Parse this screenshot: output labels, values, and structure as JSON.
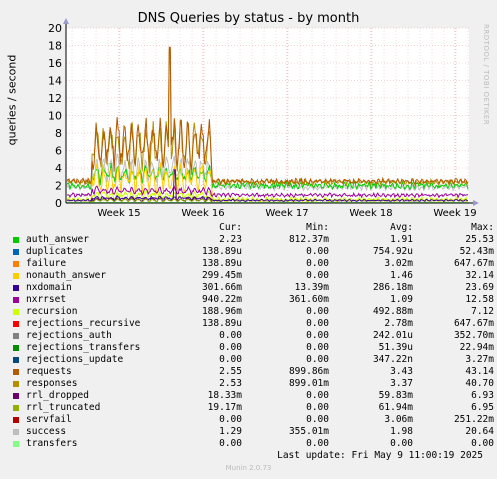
{
  "chart_data": {
    "type": "line",
    "title": "DNS Queries by status - by month",
    "ylabel": "queries / second",
    "ylim": [
      0,
      20
    ],
    "yticks": [
      0,
      2,
      4,
      6,
      8,
      10,
      12,
      14,
      16,
      18,
      20
    ],
    "xticks": [
      "Week 15",
      "Week 16",
      "Week 17",
      "Week 18",
      "Week 19"
    ],
    "grid": true,
    "side_credit": "RRDTOOL / TOBI OETIKER",
    "columns": [
      "Cur:",
      "Min:",
      "Avg:",
      "Max:"
    ],
    "series": [
      {
        "name": "auth_answer",
        "color": "#00cc00",
        "cur": "2.23",
        "min": "812.37m",
        "avg": "1.91",
        "max": "25.53"
      },
      {
        "name": "duplicates",
        "color": "#0066b3",
        "cur": "138.89u",
        "min": "0.00",
        "avg": "754.92u",
        "max": "52.43m"
      },
      {
        "name": "failure",
        "color": "#ff8000",
        "cur": "138.89u",
        "min": "0.00",
        "avg": "3.02m",
        "max": "647.67m"
      },
      {
        "name": "nonauth_answer",
        "color": "#ffcc00",
        "cur": "299.45m",
        "min": "0.00",
        "avg": "1.46",
        "max": "32.14"
      },
      {
        "name": "nxdomain",
        "color": "#330099",
        "cur": "301.66m",
        "min": "13.39m",
        "avg": "286.18m",
        "max": "23.69"
      },
      {
        "name": "nxrrset",
        "color": "#990099",
        "cur": "940.22m",
        "min": "361.60m",
        "avg": "1.09",
        "max": "12.58"
      },
      {
        "name": "recursion",
        "color": "#ccff00",
        "cur": "188.96m",
        "min": "0.00",
        "avg": "492.88m",
        "max": "7.12"
      },
      {
        "name": "rejections_recursive",
        "color": "#ff0000",
        "cur": "138.89u",
        "min": "0.00",
        "avg": "2.78m",
        "max": "647.67m"
      },
      {
        "name": "rejections_auth",
        "color": "#808080",
        "cur": "0.00",
        "min": "0.00",
        "avg": "242.01u",
        "max": "352.70m"
      },
      {
        "name": "rejections_transfers",
        "color": "#008f00",
        "cur": "0.00",
        "min": "0.00",
        "avg": "51.39u",
        "max": "22.94m"
      },
      {
        "name": "rejections_update",
        "color": "#00487d",
        "cur": "0.00",
        "min": "0.00",
        "avg": "347.22n",
        "max": "3.27m"
      },
      {
        "name": "requests",
        "color": "#b35a00",
        "cur": "2.55",
        "min": "899.86m",
        "avg": "3.43",
        "max": "43.14"
      },
      {
        "name": "responses",
        "color": "#b38f00",
        "cur": "2.53",
        "min": "899.01m",
        "avg": "3.37",
        "max": "40.70"
      },
      {
        "name": "rrl_dropped",
        "color": "#6b006b",
        "cur": "18.33m",
        "min": "0.00",
        "avg": "59.83m",
        "max": "6.93"
      },
      {
        "name": "rrl_truncated",
        "color": "#8fb300",
        "cur": "19.17m",
        "min": "0.00",
        "avg": "61.94m",
        "max": "6.95"
      },
      {
        "name": "servfail",
        "color": "#b30000",
        "cur": "0.00",
        "min": "0.00",
        "avg": "3.06m",
        "max": "251.22m"
      },
      {
        "name": "success",
        "color": "#bebebe",
        "cur": "1.29",
        "min": "355.01m",
        "avg": "1.98",
        "max": "20.64"
      },
      {
        "name": "transfers",
        "color": "#80ff80",
        "cur": "0.00",
        "min": "0.00",
        "avg": "0.00",
        "max": "0.00"
      }
    ],
    "last_update": "Last update: Fri May  9 11:00:19 2025",
    "version": "Munin 2.0.73"
  }
}
